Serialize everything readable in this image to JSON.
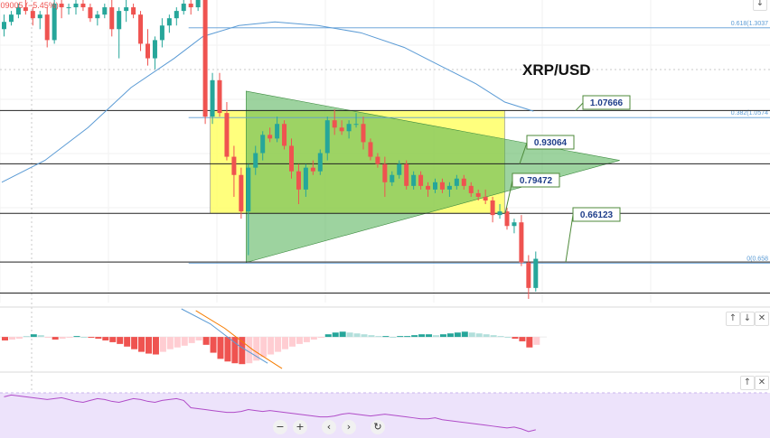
{
  "header": {
    "change_text": ".09005 (−5.45%)"
  },
  "chart_title": "XRP/USD",
  "chart_data": {
    "type": "candlestick",
    "title": "XRP/USD",
    "y_price_top": 1.38,
    "y_price_bottom": 0.55,
    "levels": [
      {
        "label": "1.07666",
        "value": 1.07666
      },
      {
        "label": "0.93064",
        "value": 0.93064
      },
      {
        "label": "0.79472",
        "value": 0.79472
      },
      {
        "label": "0.66123",
        "value": 0.66123
      }
    ],
    "bottom_line": 0.576,
    "fib": [
      {
        "label": "0.618(1.3037",
        "value": 1.3037
      },
      {
        "label": "0.382(1.0574",
        "value": 1.0574
      },
      {
        "label": "0(0.658",
        "value": 0.658
      }
    ],
    "zone": {
      "x_start": 29,
      "x_end": 70,
      "high": 1.0767,
      "low": 0.7947,
      "color": "#ffff66"
    },
    "triangle": {
      "x_start": 34,
      "x_end": 86,
      "apex": 0.94,
      "upper": 1.13,
      "lower": 0.66,
      "color": "#4caf50"
    },
    "candles": [
      [
        1.3,
        1.34,
        1.28,
        1.32
      ],
      [
        1.32,
        1.35,
        1.31,
        1.34
      ],
      [
        1.34,
        1.37,
        1.33,
        1.36
      ],
      [
        1.36,
        1.38,
        1.34,
        1.35
      ],
      [
        1.35,
        1.36,
        1.31,
        1.33
      ],
      [
        1.33,
        1.35,
        1.3,
        1.34
      ],
      [
        1.34,
        1.36,
        1.25,
        1.27
      ],
      [
        1.27,
        1.38,
        1.26,
        1.37
      ],
      [
        1.37,
        1.38,
        1.33,
        1.36
      ],
      [
        1.36,
        1.37,
        1.34,
        1.36
      ],
      [
        1.36,
        1.38,
        1.34,
        1.37
      ],
      [
        1.37,
        1.38,
        1.35,
        1.36
      ],
      [
        1.36,
        1.37,
        1.32,
        1.33
      ],
      [
        1.33,
        1.35,
        1.31,
        1.34
      ],
      [
        1.34,
        1.37,
        1.33,
        1.36
      ],
      [
        1.36,
        1.38,
        1.28,
        1.3
      ],
      [
        1.3,
        1.36,
        1.22,
        1.35
      ],
      [
        1.35,
        1.38,
        1.32,
        1.36
      ],
      [
        1.36,
        1.37,
        1.33,
        1.34
      ],
      [
        1.34,
        1.35,
        1.24,
        1.26
      ],
      [
        1.26,
        1.3,
        1.2,
        1.22
      ],
      [
        1.22,
        1.28,
        1.19,
        1.27
      ],
      [
        1.27,
        1.33,
        1.25,
        1.31
      ],
      [
        1.31,
        1.34,
        1.29,
        1.33
      ],
      [
        1.33,
        1.36,
        1.31,
        1.35
      ],
      [
        1.35,
        1.38,
        1.34,
        1.37
      ],
      [
        1.37,
        1.38,
        1.34,
        1.36
      ],
      [
        1.36,
        1.38,
        1.35,
        1.38
      ],
      [
        1.38,
        1.38,
        1.04,
        1.06
      ],
      [
        1.06,
        1.18,
        1.04,
        1.16
      ],
      [
        1.16,
        1.18,
        1.06,
        1.07
      ],
      [
        1.07,
        1.1,
        0.94,
        0.95
      ],
      [
        0.95,
        0.98,
        0.84,
        0.9
      ],
      [
        0.9,
        0.92,
        0.78,
        0.8
      ],
      [
        0.8,
        0.93,
        0.68,
        0.92
      ],
      [
        0.92,
        0.98,
        0.9,
        0.96
      ],
      [
        0.96,
        1.02,
        0.94,
        1.01
      ],
      [
        1.01,
        1.03,
        0.99,
        1.0
      ],
      [
        1.0,
        1.06,
        0.99,
        1.04
      ],
      [
        1.04,
        1.05,
        0.97,
        0.98
      ],
      [
        0.98,
        1.0,
        0.89,
        0.91
      ],
      [
        0.91,
        0.93,
        0.82,
        0.86
      ],
      [
        0.86,
        0.93,
        0.84,
        0.92
      ],
      [
        0.92,
        0.94,
        0.9,
        0.91
      ],
      [
        0.91,
        0.97,
        0.9,
        0.96
      ],
      [
        0.96,
        1.06,
        0.94,
        1.05
      ],
      [
        1.05,
        1.08,
        1.01,
        1.03
      ],
      [
        1.03,
        1.05,
        1.01,
        1.02
      ],
      [
        1.02,
        1.05,
        1.0,
        1.04
      ],
      [
        1.04,
        1.07,
        1.03,
        1.04
      ],
      [
        1.04,
        1.06,
        0.97,
        0.99
      ],
      [
        0.99,
        1.0,
        0.94,
        0.95
      ],
      [
        0.95,
        0.96,
        0.92,
        0.93
      ],
      [
        0.93,
        0.95,
        0.84,
        0.88
      ],
      [
        0.88,
        0.91,
        0.87,
        0.9
      ],
      [
        0.9,
        0.94,
        0.89,
        0.93
      ],
      [
        0.93,
        0.94,
        0.86,
        0.87
      ],
      [
        0.87,
        0.91,
        0.86,
        0.9
      ],
      [
        0.9,
        0.91,
        0.86,
        0.87
      ],
      [
        0.87,
        0.88,
        0.84,
        0.86
      ],
      [
        0.86,
        0.89,
        0.85,
        0.88
      ],
      [
        0.88,
        0.89,
        0.85,
        0.86
      ],
      [
        0.86,
        0.88,
        0.84,
        0.87
      ],
      [
        0.87,
        0.9,
        0.86,
        0.89
      ],
      [
        0.89,
        0.9,
        0.86,
        0.87
      ],
      [
        0.87,
        0.88,
        0.84,
        0.85
      ],
      [
        0.85,
        0.86,
        0.83,
        0.84
      ],
      [
        0.84,
        0.86,
        0.82,
        0.83
      ],
      [
        0.83,
        0.84,
        0.77,
        0.79
      ],
      [
        0.79,
        0.82,
        0.78,
        0.8
      ],
      [
        0.8,
        0.81,
        0.75,
        0.76
      ],
      [
        0.76,
        0.78,
        0.74,
        0.77
      ],
      [
        0.77,
        0.79,
        0.65,
        0.66
      ],
      [
        0.66,
        0.68,
        0.56,
        0.59
      ],
      [
        0.59,
        0.69,
        0.58,
        0.67
      ]
    ],
    "ma": [
      [
        0,
        0.88
      ],
      [
        6,
        0.94
      ],
      [
        12,
        1.03
      ],
      [
        18,
        1.14
      ],
      [
        24,
        1.22
      ],
      [
        28,
        1.28
      ],
      [
        33,
        1.31
      ],
      [
        38,
        1.32
      ],
      [
        44,
        1.31
      ],
      [
        50,
        1.29
      ],
      [
        56,
        1.25
      ],
      [
        61,
        1.2
      ],
      [
        66,
        1.15
      ],
      [
        70,
        1.1
      ],
      [
        74,
        1.075
      ]
    ]
  },
  "macd_data": {
    "histogram": [
      -0.04,
      -0.03,
      -0.02,
      0.01,
      0.03,
      0.02,
      -0.01,
      -0.03,
      -0.02,
      -0.01,
      0.01,
      0.0,
      -0.01,
      -0.02,
      -0.04,
      -0.06,
      -0.08,
      -0.11,
      -0.14,
      -0.17,
      -0.19,
      -0.2,
      -0.17,
      -0.14,
      -0.12,
      -0.1,
      -0.07,
      -0.04,
      -0.09,
      -0.18,
      -0.25,
      -0.28,
      -0.3,
      -0.31,
      -0.3,
      -0.27,
      -0.23,
      -0.2,
      -0.17,
      -0.14,
      -0.11,
      -0.08,
      -0.06,
      -0.03,
      -0.01,
      0.03,
      0.05,
      0.06,
      0.05,
      0.04,
      0.03,
      0.02,
      0.01,
      0.01,
      0.0,
      0.01,
      0.01,
      0.02,
      0.03,
      0.03,
      0.02,
      0.03,
      0.04,
      0.05,
      0.06,
      0.05,
      0.04,
      0.03,
      0.02,
      0.01,
      0.0,
      -0.02,
      -0.05,
      -0.12,
      -0.09
    ],
    "macd_line": [
      [
        25,
        0.32
      ],
      [
        29,
        0.15
      ],
      [
        33,
        -0.1
      ],
      [
        37,
        -0.3
      ]
    ],
    "signal_line": [
      [
        27,
        0.3
      ],
      [
        31,
        0.1
      ],
      [
        35,
        -0.15
      ],
      [
        39,
        -0.36
      ]
    ],
    "ylim": [
      -0.38,
      0.32
    ]
  },
  "rsi_data": {
    "values": [
      60,
      62,
      61,
      60,
      59,
      58,
      57,
      58,
      59,
      57,
      55,
      54,
      56,
      58,
      57,
      55,
      54,
      56,
      58,
      57,
      55,
      54,
      56,
      57,
      58,
      56,
      48,
      47,
      46,
      45,
      44,
      43,
      43,
      44,
      46,
      45,
      44,
      45,
      44,
      43,
      42,
      41,
      40,
      39,
      38,
      38,
      39,
      41,
      42,
      41,
      40,
      39,
      40,
      41,
      40,
      39,
      38,
      37,
      36,
      36,
      37,
      35,
      34,
      33,
      32,
      31,
      30,
      29,
      28,
      27,
      26,
      27,
      25,
      22,
      24
    ],
    "ylim": [
      15,
      85
    ],
    "band_color": "#ede3fb"
  },
  "controls": {
    "macd_up": "↑",
    "macd_down": "↓",
    "macd_close": "✕",
    "rsi_up": "↑",
    "rsi_close": "✕",
    "main_down": "↓"
  },
  "nav": {
    "minus": "−",
    "plus": "+",
    "left": "‹",
    "right": "›",
    "reset": "↻"
  },
  "colors": {
    "up": "#26a69a",
    "down": "#ef5350",
    "ma": "#5b9bd5",
    "macd_up": "#26a69a",
    "macd_up_light": "#b2dfdb",
    "macd_down": "#ef5350",
    "macd_down_light": "#ffcdd2",
    "rsi_line": "#b04cc8",
    "label_border": "#4e8a3a"
  }
}
